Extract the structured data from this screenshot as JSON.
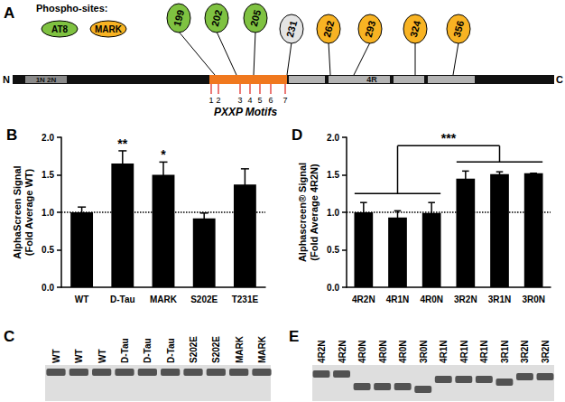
{
  "chart_data": [
    {
      "type": "bar",
      "title": "B",
      "y_label": "AlphaScreen Signal\n(Fold Average WT)",
      "categories": [
        "WT",
        "D-Tau",
        "MARK",
        "S202E",
        "T231E"
      ],
      "values": [
        1.0,
        1.65,
        1.5,
        0.92,
        1.37
      ],
      "errors": [
        0.07,
        0.17,
        0.17,
        0.07,
        0.21
      ],
      "color": "#000000",
      "reference_line": 1.0,
      "ylim": [
        0,
        2
      ],
      "yticks": [
        {
          "value": 0,
          "label": "0.0"
        },
        {
          "value": 0.5,
          "label": "0.5"
        },
        {
          "value": 1,
          "label": "1.0"
        },
        {
          "value": 1.5,
          "label": "1.5"
        },
        {
          "value": 2,
          "label": "2.0"
        }
      ],
      "grid": false,
      "annotations": [
        {
          "text": "**",
          "category": "D-Tau"
        },
        {
          "text": "*",
          "category": "MARK"
        }
      ]
    },
    {
      "type": "bar",
      "title": "D",
      "y_label": "Alphascreen® Signal\n(Fold Average 4R2N)",
      "categories": [
        "4R2N",
        "4R1N",
        "4R0N",
        "3R2N",
        "3R1N",
        "3R0N"
      ],
      "values": [
        1.0,
        0.93,
        0.99,
        1.45,
        1.51,
        1.52
      ],
      "errors": [
        0.13,
        0.09,
        0.14,
        0.1,
        0.03,
        0.0
      ],
      "color": "#000000",
      "reference_line": 1.0,
      "ylim": [
        0,
        2
      ],
      "yticks": [
        {
          "value": 0,
          "label": "0.0"
        },
        {
          "value": 0.5,
          "label": "0.5"
        },
        {
          "value": 1,
          "label": "1.0"
        },
        {
          "value": 1.5,
          "label": "1.5"
        },
        {
          "value": 2,
          "label": "2.0"
        }
      ],
      "grid": false,
      "annotations": [
        {
          "text": "***",
          "groups": [
            [
              "4R2N",
              "4R1N",
              "4R0N"
            ],
            [
              "3R2N",
              "3R1N",
              "3R0N"
            ]
          ]
        }
      ]
    }
  ],
  "diagram": {
    "title": "A",
    "legend_title": "Phospho-sites:",
    "legend": [
      {
        "label": "AT8",
        "color": "#7fc241"
      },
      {
        "label": "MARK",
        "color": "#f8b323"
      }
    ],
    "left_end": "N",
    "right_end": "C",
    "domains": [
      "1N 2N",
      "4R"
    ],
    "sites": [
      {
        "label": "199",
        "group": "AT8"
      },
      {
        "label": "202",
        "group": "AT8"
      },
      {
        "label": "205",
        "group": "AT8"
      },
      {
        "label": "231",
        "group": null
      },
      {
        "label": "262",
        "group": "MARK"
      },
      {
        "label": "293",
        "group": "MARK"
      },
      {
        "label": "324",
        "group": "MARK"
      },
      {
        "label": "356",
        "group": "MARK"
      }
    ],
    "motifs": [
      "1",
      "2",
      "3",
      "4",
      "5",
      "6",
      "7"
    ],
    "motif_title": "PXXP Motifs"
  },
  "gels": [
    {
      "title": "C",
      "lanes": [
        "WT",
        "WT",
        "WT",
        "D-Tau",
        "D-Tau",
        "D-Tau",
        "S202E",
        "S202E",
        "MARK",
        "MARK"
      ]
    },
    {
      "title": "E",
      "lanes": [
        "4R2N",
        "4R2N",
        "4R0N",
        "4R0N",
        "4R0N",
        "3R0N",
        "4R1N",
        "4R1N",
        "4R1N",
        "3R1N",
        "3R2N",
        "3R2N"
      ]
    }
  ]
}
